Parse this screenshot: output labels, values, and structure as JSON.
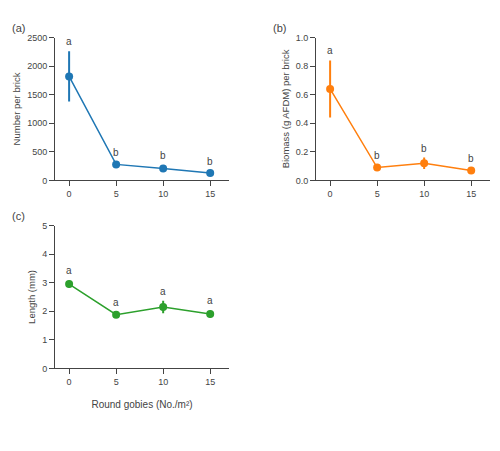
{
  "chart_data": [
    {
      "type": "line",
      "title": "(a)",
      "ylabel": "Number per brick",
      "x": [
        0,
        5,
        10,
        15
      ],
      "values": [
        1820,
        280,
        210,
        130
      ],
      "errors": [
        440,
        50,
        60,
        30
      ],
      "annotations": [
        "a",
        "b",
        "b",
        "b"
      ],
      "xlim": [
        -1.5,
        17
      ],
      "xticks": [
        0,
        5,
        10,
        15
      ],
      "ylim": [
        0,
        2500
      ],
      "yticks": [
        0,
        500,
        1000,
        1500,
        2000,
        2500
      ],
      "marker": "circle",
      "grid": false
    },
    {
      "type": "line",
      "title": "(b)",
      "ylabel": "Biomass (g AFDM) per brick",
      "x": [
        0,
        5,
        10,
        15
      ],
      "values": [
        0.64,
        0.09,
        0.12,
        0.07
      ],
      "errors": [
        0.2,
        0.02,
        0.04,
        0.02
      ],
      "annotations": [
        "a",
        "b",
        "b",
        "b"
      ],
      "xlim": [
        -1.5,
        17
      ],
      "xticks": [
        0,
        5,
        10,
        15
      ],
      "ylim": [
        0,
        1
      ],
      "yticks": [
        {
          "value": 0,
          "label": "0.0"
        },
        0.2,
        0.4,
        0.6,
        0.8,
        {
          "value": 1,
          "label": "1.0"
        }
      ],
      "marker": "circle",
      "grid": false
    },
    {
      "type": "line",
      "title": "(c)",
      "ylabel": "Length (mm)",
      "xlabel": "Round gobies (No./m²)",
      "x": [
        0,
        5,
        10,
        15
      ],
      "values": [
        2.95,
        1.88,
        2.15,
        1.9
      ],
      "errors": [
        0.13,
        0.1,
        0.22,
        0.13
      ],
      "annotations": [
        "a",
        "a",
        "a",
        "a"
      ],
      "xlim": [
        -1.5,
        17
      ],
      "xticks": [
        0,
        5,
        10,
        15
      ],
      "ylim": [
        0,
        5
      ],
      "yticks": [
        0,
        1,
        2,
        3,
        4,
        5
      ],
      "marker": "circle",
      "grid": false
    }
  ]
}
